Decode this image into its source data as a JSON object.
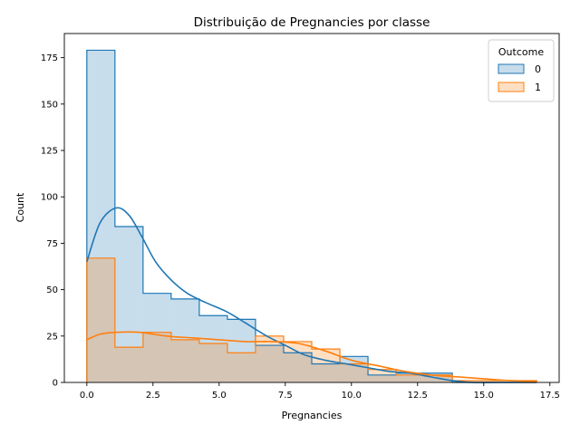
{
  "chart_data": {
    "type": "histogram",
    "title": "Distribuição de Pregnancies por classe",
    "xlabel": "Pregnancies",
    "ylabel": "Count",
    "xlim": [
      -0.85,
      17.85
    ],
    "ylim": [
      0,
      188
    ],
    "xticks": [
      0.0,
      2.5,
      5.0,
      7.5,
      10.0,
      12.5,
      15.0,
      17.5
    ],
    "xtick_labels": [
      "0.0",
      "2.5",
      "5.0",
      "7.5",
      "10.0",
      "12.5",
      "15.0",
      "17.5"
    ],
    "yticks": [
      0,
      25,
      50,
      75,
      100,
      125,
      150,
      175
    ],
    "ytick_labels": [
      "0",
      "25",
      "50",
      "75",
      "100",
      "125",
      "150",
      "175"
    ],
    "bin_edges": [
      0,
      1.0625,
      2.125,
      3.1875,
      4.25,
      5.3125,
      6.375,
      7.4375,
      8.5,
      9.5625,
      10.625,
      11.6875,
      12.75,
      13.8125,
      14.875,
      15.9375,
      17
    ],
    "legend": {
      "title": "Outcome",
      "position": "upper right"
    },
    "grid": false,
    "series": [
      {
        "name": "0",
        "color": "#1f77b4",
        "fill": "#c6dbef",
        "counts": [
          179,
          84,
          48,
          45,
          36,
          34,
          20,
          16,
          10,
          14,
          4,
          5,
          5,
          0,
          0,
          0
        ],
        "kde": [
          [
            0,
            65
          ],
          [
            0.5,
            86
          ],
          [
            1.1,
            94
          ],
          [
            1.6,
            90
          ],
          [
            2.1,
            78
          ],
          [
            2.6,
            65
          ],
          [
            3.2,
            55
          ],
          [
            3.8,
            48
          ],
          [
            4.5,
            43
          ],
          [
            5.3,
            38
          ],
          [
            6.0,
            32
          ],
          [
            6.8,
            25
          ],
          [
            7.5,
            20
          ],
          [
            8.2,
            15
          ],
          [
            9.0,
            12
          ],
          [
            9.8,
            10
          ],
          [
            10.6,
            8
          ],
          [
            11.4,
            6
          ],
          [
            12.2,
            5
          ],
          [
            13.0,
            3
          ],
          [
            13.8,
            1
          ],
          [
            14.6,
            0
          ],
          [
            15.5,
            0
          ],
          [
            17,
            0
          ]
        ]
      },
      {
        "name": "1",
        "color": "#ff7f0e",
        "fill": "#fdd0a2",
        "counts": [
          67,
          19,
          27,
          23,
          21,
          16,
          25,
          22,
          18,
          10,
          7,
          4,
          4,
          1,
          1,
          1
        ],
        "kde": [
          [
            0,
            23
          ],
          [
            0.5,
            26
          ],
          [
            1.1,
            27
          ],
          [
            2.0,
            27
          ],
          [
            3.0,
            25
          ],
          [
            4.0,
            24
          ],
          [
            5.0,
            23
          ],
          [
            6.0,
            22
          ],
          [
            7.0,
            22
          ],
          [
            8.0,
            21
          ],
          [
            9.0,
            17
          ],
          [
            10.0,
            12
          ],
          [
            11.0,
            9
          ],
          [
            12.0,
            6
          ],
          [
            13.0,
            4
          ],
          [
            14.0,
            3
          ],
          [
            15.0,
            2
          ],
          [
            16.0,
            1
          ],
          [
            17,
            0.5
          ]
        ]
      }
    ]
  }
}
